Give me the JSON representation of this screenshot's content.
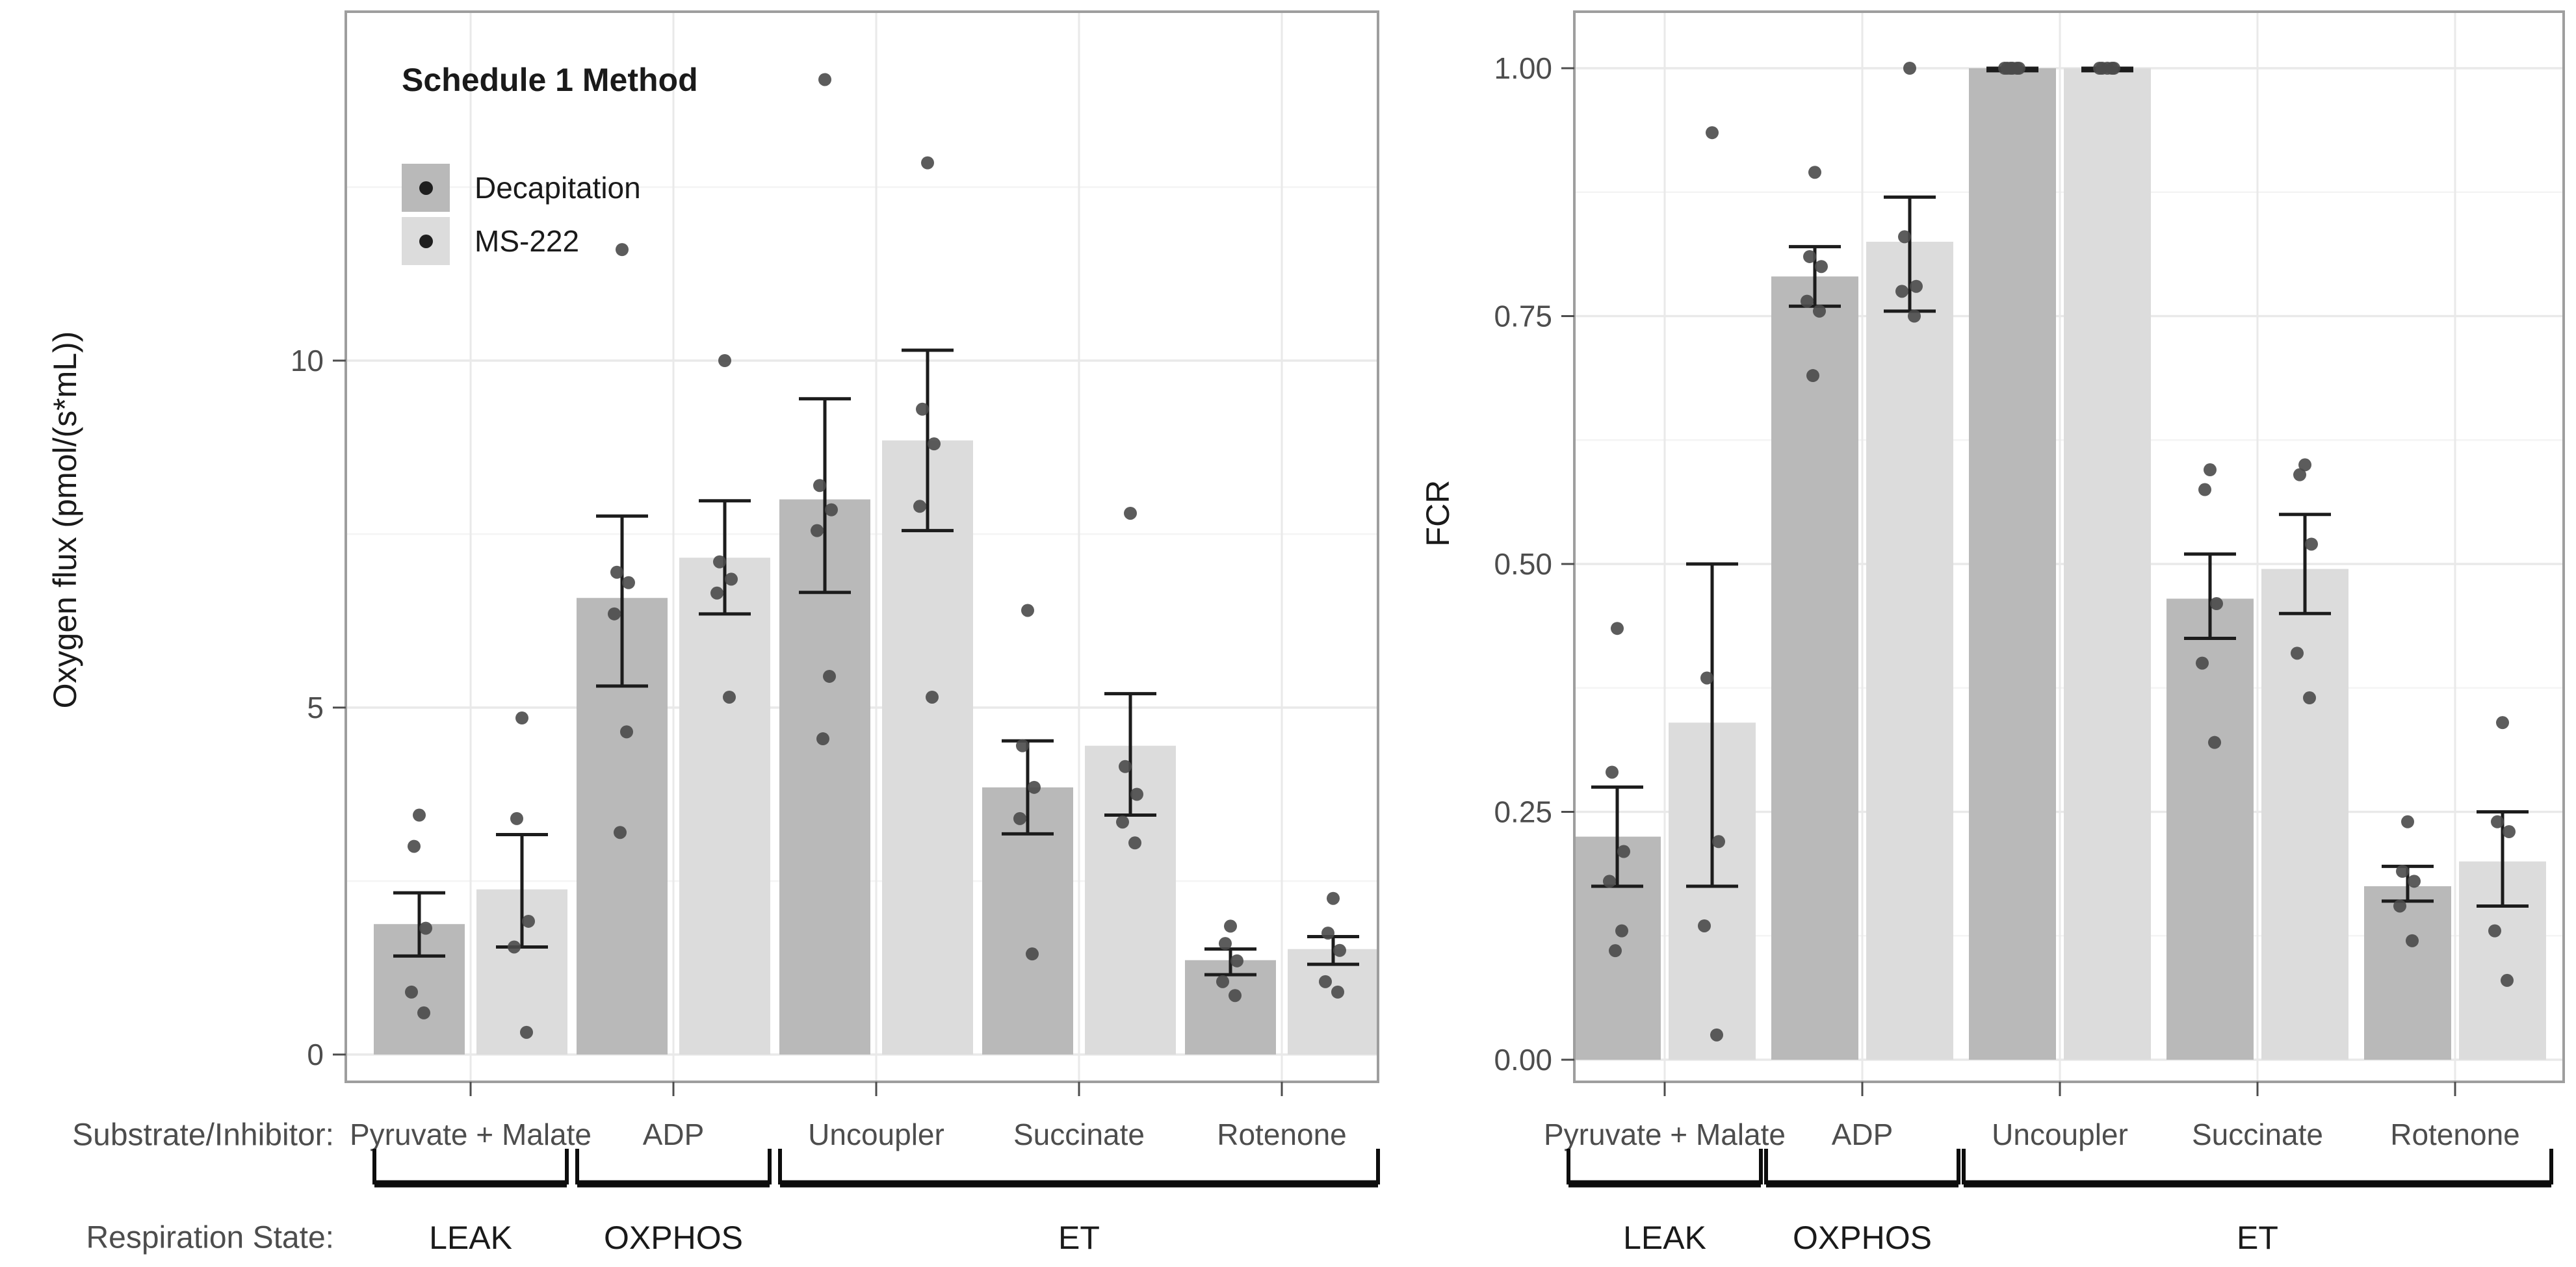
{
  "legend": {
    "title": "Schedule 1 Method",
    "items": [
      {
        "label": "Decapitation",
        "color": "#b9b9b9"
      },
      {
        "label": "MS-222",
        "color": "#dcdcdc"
      }
    ]
  },
  "annotations": {
    "substrate_row_label": "Substrate/Inhibitor:",
    "respiration_row_label": "Respiration State:"
  },
  "colors": {
    "bar_dark": "#b9b9b9",
    "bar_light": "#dcdcdc",
    "point": "#4a4a4a",
    "error_bar": "#1c1c1c",
    "grid_major": "#e9e9e9",
    "grid_minor": "#f4f4f4",
    "panel_border": "#9e9e9e",
    "axis_text": "#4d4d4d",
    "bracket": "#0d0d0d",
    "state_text": "#1a1a1a"
  },
  "chart_data": [
    {
      "type": "bar",
      "title": "",
      "xlabel": "",
      "ylabel": "Oxygen flux (pmol/(s*mL))",
      "categories": [
        "Pyruvate + Malate",
        "ADP",
        "Uncoupler",
        "Succinate",
        "Rotenone"
      ],
      "ylim": [
        0,
        15
      ],
      "yticks": [
        0,
        5,
        10
      ],
      "ytick_labels": [
        "0",
        "5",
        "10"
      ],
      "grid_major": [
        0,
        5,
        10
      ],
      "grid_minor": [
        2.5,
        7.5,
        12.5
      ],
      "legend_position": "top-left-inside",
      "error_type": "mean ± SEM with jittered raw points",
      "series": [
        {
          "name": "Decapitation",
          "values": [
            1.88,
            6.58,
            8.0,
            3.85,
            1.36
          ],
          "error_low": [
            1.42,
            5.31,
            6.66,
            3.18,
            1.15
          ],
          "error_high": [
            2.33,
            7.76,
            9.45,
            4.52,
            1.52
          ],
          "points": [
            [
              3.45,
              3.0,
              1.82,
              0.9,
              0.6
            ],
            [
              11.6,
              6.95,
              6.8,
              6.35,
              4.65,
              3.2
            ],
            [
              14.05,
              8.2,
              7.85,
              7.55,
              5.45,
              4.55
            ],
            [
              6.4,
              4.45,
              3.85,
              3.4,
              1.45
            ],
            [
              1.85,
              1.6,
              1.35,
              1.05,
              0.85
            ]
          ]
        },
        {
          "name": "MS-222",
          "values": [
            2.38,
            7.16,
            8.85,
            4.45,
            1.52
          ],
          "error_low": [
            1.55,
            6.35,
            7.55,
            3.45,
            1.3
          ],
          "error_high": [
            3.17,
            7.98,
            10.15,
            5.2,
            1.7
          ],
          "points": [
            [
              4.85,
              3.4,
              1.92,
              1.55,
              0.32
            ],
            [
              10.0,
              7.1,
              6.85,
              6.65,
              5.15
            ],
            [
              12.85,
              9.3,
              8.8,
              7.9,
              5.15
            ],
            [
              7.8,
              4.15,
              3.75,
              3.35,
              3.05
            ],
            [
              2.25,
              1.75,
              1.5,
              1.05,
              0.9
            ]
          ]
        }
      ],
      "respiration_states": [
        {
          "label": "LEAK",
          "from": 0,
          "to": 0
        },
        {
          "label": "OXPHOS",
          "from": 1,
          "to": 1
        },
        {
          "label": "ET",
          "from": 2,
          "to": 4
        }
      ]
    },
    {
      "type": "bar",
      "title": "",
      "xlabel": "",
      "ylabel": "FCR",
      "categories": [
        "Pyruvate + Malate",
        "ADP",
        "Uncoupler",
        "Succinate",
        "Rotenone"
      ],
      "ylim": [
        0,
        1.0
      ],
      "yticks": [
        0,
        0.25,
        0.5,
        0.75,
        1.0
      ],
      "ytick_labels": [
        "0.00",
        "0.25",
        "0.50",
        "0.75",
        "1.00"
      ],
      "grid_major": [
        0,
        0.25,
        0.5,
        0.75,
        1.0
      ],
      "grid_minor": [
        0.125,
        0.375,
        0.625,
        0.875
      ],
      "legend_position": "none",
      "error_type": "mean ± SEM with jittered raw points",
      "series": [
        {
          "name": "Decapitation",
          "values": [
            0.225,
            0.79,
            1.0,
            0.465,
            0.175
          ],
          "error_low": [
            0.175,
            0.76,
            0.9975,
            0.425,
            0.16
          ],
          "error_high": [
            0.275,
            0.82,
            1.0,
            0.51,
            0.195
          ],
          "points": [
            [
              0.435,
              0.29,
              0.21,
              0.18,
              0.13,
              0.11
            ],
            [
              0.895,
              0.81,
              0.8,
              0.765,
              0.755,
              0.69
            ],
            [
              1.0,
              1.0,
              1.0,
              1.0,
              1.0,
              1.0
            ],
            [
              0.595,
              0.575,
              0.46,
              0.4,
              0.32
            ],
            [
              0.24,
              0.19,
              0.18,
              0.155,
              0.12
            ]
          ]
        },
        {
          "name": "MS-222",
          "values": [
            0.34,
            0.825,
            1.0,
            0.495,
            0.2
          ],
          "error_low": [
            0.175,
            0.755,
            0.9975,
            0.45,
            0.155
          ],
          "error_high": [
            0.5,
            0.87,
            1.0,
            0.55,
            0.25
          ],
          "points": [
            [
              0.935,
              0.385,
              0.22,
              0.135,
              0.025
            ],
            [
              1.0,
              0.83,
              0.78,
              0.775,
              0.75
            ],
            [
              1.0,
              1.0,
              1.0,
              1.0,
              1.0
            ],
            [
              0.6,
              0.59,
              0.52,
              0.41,
              0.365
            ],
            [
              0.34,
              0.24,
              0.23,
              0.13,
              0.08
            ]
          ]
        }
      ],
      "respiration_states": [
        {
          "label": "LEAK",
          "from": 0,
          "to": 0
        },
        {
          "label": "OXPHOS",
          "from": 1,
          "to": 1
        },
        {
          "label": "ET",
          "from": 2,
          "to": 4
        }
      ]
    }
  ]
}
